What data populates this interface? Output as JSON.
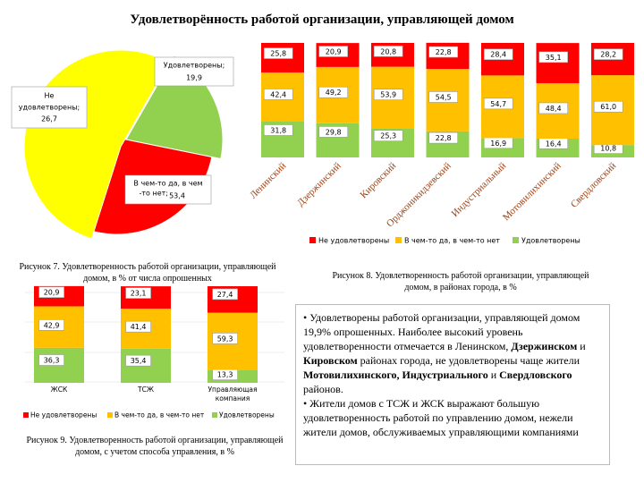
{
  "page_title": "Удовлетворённость работой организации, управляющей домом",
  "colors": {
    "red": "#FF0000",
    "yellow": "#FFFF00",
    "orange": "#FFC000",
    "green": "#92D050"
  },
  "chart_data": [
    {
      "type": "pie",
      "title": "",
      "caption": "Рисунок 7. Удовлетворенность работой организации, управляющей домом, в % от числа опрошенных",
      "slices": [
        {
          "label": "Удовлетворены;",
          "value_label": "19,9",
          "value": 19.9,
          "color": "#92D050"
        },
        {
          "label": "Не удовлетворены;",
          "value_label": "26,7",
          "value": 26.7,
          "color": "#FF0000"
        },
        {
          "label": "В чем-то да, в чем -то нет;",
          "value_label": "53,4",
          "value": 53.4,
          "color": "#FFFF00"
        }
      ]
    },
    {
      "type": "bar",
      "stacked": true,
      "caption": "Рисунок 8. Удовлетворенность работой организации, управляющей домом, в районах города, в %",
      "categories": [
        "Ленинский",
        "Дзержинский",
        "Кировский",
        "Орджоникидзевский",
        "Индустриальный",
        "Мотовилихинский",
        "Свердловский"
      ],
      "series": [
        {
          "name": "Удовлетворены",
          "color": "#92D050",
          "values": [
            31.8,
            29.8,
            25.3,
            22.8,
            16.9,
            16.4,
            10.8
          ],
          "labels": [
            "31,8",
            "29,8",
            "25,3",
            "22,8",
            "16,9",
            "16,4",
            "10,8"
          ]
        },
        {
          "name": "В чем-то да, в чем-то нет",
          "color": "#FFC000",
          "values": [
            42.4,
            49.2,
            53.9,
            54.5,
            54.7,
            48.4,
            61.0
          ],
          "labels": [
            "42,4",
            "49,2",
            "53,9",
            "54,5",
            "54,7",
            "48,4",
            "61,0"
          ]
        },
        {
          "name": "Не удовлетворены",
          "color": "#FF0000",
          "values": [
            25.8,
            20.9,
            20.8,
            22.8,
            28.4,
            35.1,
            28.2
          ],
          "labels": [
            "25,8",
            "20,9",
            "20,8",
            "22,8",
            "28,4",
            "35,1",
            "28,2"
          ]
        }
      ],
      "legend": [
        "Не удовлетворены",
        "В чем-то да, в чем-то нет",
        "Удовлетворены"
      ],
      "ylim": [
        0,
        100
      ]
    },
    {
      "type": "bar",
      "stacked": true,
      "caption": "Рисунок 9. Удовлетворенность работой организации, управляющей домом, с учетом способа управления, в %",
      "categories": [
        "ЖСК",
        "ТСЖ",
        "Управляющая компания"
      ],
      "series": [
        {
          "name": "Удовлетворены",
          "color": "#92D050",
          "values": [
            36.3,
            35.4,
            13.3
          ],
          "labels": [
            "36,3",
            "35,4",
            "13,3"
          ]
        },
        {
          "name": "В чем-то да, в чем-то нет",
          "color": "#FFC000",
          "values": [
            42.9,
            41.4,
            59.3
          ],
          "labels": [
            "42,9",
            "41,4",
            "59,3"
          ]
        },
        {
          "name": "Не удовлетворены",
          "color": "#FF0000",
          "values": [
            20.9,
            23.1,
            27.4
          ],
          "labels": [
            "20,9",
            "23,1",
            "27,4"
          ]
        }
      ],
      "legend": [
        "Не удовлетворены",
        "В чем-то да, в чем-то нет",
        "Удовлетворены"
      ],
      "ylim": [
        0,
        100
      ]
    }
  ],
  "text_block": {
    "p1": {
      "a": "• Удовлетворены работой организации, управляющей домом 19,9% опрошенных. Наиболее высокий уровень удовлетворенности отмечается в Ленинском, ",
      "b1": "Дзержинском",
      "c": " и ",
      "b2": "Кировском",
      "d": " районах города, не удовлетворены чаще жители ",
      "b3": "Мотовилихинского, Индустриального",
      "e": " и ",
      "b4": "Свердловского",
      "f": " районов."
    },
    "p2": "• Жители домов с ТСЖ и ЖСК выражают большую удовлетворенность работой по управлению домом, нежели жители домов, обслуживаемых управляющими компаниями"
  }
}
